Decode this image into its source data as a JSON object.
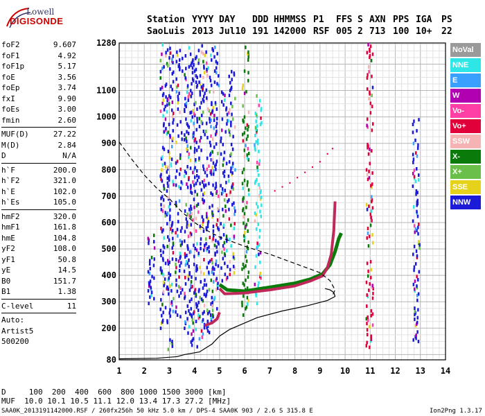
{
  "logo": {
    "line1": "Lowell",
    "line2": "DIGISONDE"
  },
  "header": {
    "row1": [
      "Station",
      "YYYY",
      "DAY",
      "DDD",
      "HHMMSS",
      "P1",
      "FFS",
      "S",
      "AXN",
      "PPS",
      "IGA",
      "PS"
    ],
    "row2": [
      "SaoLuis",
      "2013",
      "Jul10",
      "191",
      "142000",
      "RSF",
      "005",
      "2",
      "713",
      "100",
      "10+",
      "22"
    ]
  },
  "params": [
    [
      {
        "label": "foF2",
        "value": "9.607"
      },
      {
        "label": "foF1",
        "value": "4.92"
      },
      {
        "label": "foF1p",
        "value": "5.17"
      },
      {
        "label": "foE",
        "value": "3.56"
      },
      {
        "label": "foEp",
        "value": "3.74"
      },
      {
        "label": "fxI",
        "value": "9.90"
      },
      {
        "label": "foEs",
        "value": "3.00"
      },
      {
        "label": "fmin",
        "value": "2.60"
      }
    ],
    [
      {
        "label": "MUF(D)",
        "value": "27.22"
      },
      {
        "label": "M(D)",
        "value": "2.84"
      },
      {
        "label": "D",
        "value": "N/A"
      }
    ],
    [
      {
        "label": "h`F",
        "value": "200.0"
      },
      {
        "label": "h`F2",
        "value": "321.0"
      },
      {
        "label": "h`E",
        "value": "102.0"
      },
      {
        "label": "h`Es",
        "value": "105.0"
      }
    ],
    [
      {
        "label": "hmF2",
        "value": "320.0"
      },
      {
        "label": "hmF1",
        "value": "161.8"
      },
      {
        "label": "hmE",
        "value": "104.8"
      },
      {
        "label": "yF2",
        "value": "108.0"
      },
      {
        "label": "yF1",
        "value": "50.8"
      },
      {
        "label": "yE",
        "value": "14.5"
      },
      {
        "label": "B0",
        "value": "151.7"
      },
      {
        "label": "B1",
        "value": "1.38"
      }
    ],
    [
      {
        "label": "C-level",
        "value": "11"
      }
    ]
  ],
  "autoscale": [
    "Auto:",
    "Artist5",
    "500200"
  ],
  "footer": {
    "d_row": "D     100  200  400  600  800 1000 1500 3000 [km]",
    "muf_row": "MUF  10.0 10.1 10.5 11.1 12.0 13.4 17.3 27.2 [MHz]",
    "file_info": "SAA0K_2013191142000.RSF / 260fx256h 50 kHz 5.0 km / DPS-4 SAA0K 903 / 2.6 S 315.8 E",
    "version": "Ion2Png 1.3.17"
  },
  "legend": [
    {
      "label": "NoVal",
      "color": "#9a9a9a"
    },
    {
      "label": "NNE",
      "color": "#2ee6e6"
    },
    {
      "label": "E",
      "color": "#3aa0ff"
    },
    {
      "label": "W",
      "color": "#b000b0"
    },
    {
      "label": "Vo-",
      "color": "#ff3fa5"
    },
    {
      "label": "Vo+",
      "color": "#e0003a"
    },
    {
      "label": "SSW",
      "color": "#f5b3b3"
    },
    {
      "label": "X-",
      "color": "#0a7a0a"
    },
    {
      "label": "X+",
      "color": "#6abf4b"
    },
    {
      "label": "SSE",
      "color": "#e6d21a"
    },
    {
      "label": "NNW",
      "color": "#1a1ad8"
    }
  ],
  "chart_data": {
    "type": "scatter",
    "title": "",
    "xlabel": "",
    "ylabel": "",
    "xlim": [
      1,
      14
    ],
    "ylim": [
      80,
      1280
    ],
    "grid": true,
    "x_ticks": [
      1,
      2,
      3,
      4,
      5,
      6,
      7,
      8,
      9,
      10,
      11,
      12,
      13,
      14
    ],
    "y_ticks": [
      80,
      200,
      300,
      400,
      500,
      600,
      700,
      800,
      900,
      1000,
      1100,
      1280
    ],
    "trace_F_X": {
      "color": "#0a7a0a",
      "points": [
        [
          5.0,
          365
        ],
        [
          5.3,
          345
        ],
        [
          6,
          340
        ],
        [
          7,
          355
        ],
        [
          8,
          370
        ],
        [
          8.6,
          385
        ],
        [
          9.1,
          405
        ],
        [
          9.4,
          440
        ],
        [
          9.6,
          490
        ],
        [
          9.75,
          540
        ],
        [
          9.85,
          560
        ]
      ]
    },
    "trace_F_O": {
      "color": "#c0285a",
      "points": [
        [
          5.0,
          350
        ],
        [
          5.2,
          330
        ],
        [
          6,
          333
        ],
        [
          7,
          345
        ],
        [
          8,
          360
        ],
        [
          8.6,
          378
        ],
        [
          9.1,
          398
        ],
        [
          9.3,
          430
        ],
        [
          9.45,
          480
        ],
        [
          9.55,
          570
        ],
        [
          9.6,
          680
        ]
      ]
    },
    "trace_F1": {
      "color": "#c0285a",
      "points": [
        [
          4.4,
          210
        ],
        [
          4.7,
          220
        ],
        [
          4.9,
          235
        ],
        [
          5.0,
          260
        ]
      ]
    },
    "profile_solid": {
      "color": "#000000",
      "points": [
        [
          1.0,
          84
        ],
        [
          2.5,
          86
        ],
        [
          3.3,
          92
        ],
        [
          3.6,
          100
        ],
        [
          4.2,
          110
        ],
        [
          4.7,
          140
        ],
        [
          5.0,
          170
        ],
        [
          5.4,
          195
        ],
        [
          6.5,
          240
        ],
        [
          7.5,
          265
        ],
        [
          8.5,
          285
        ],
        [
          9.3,
          305
        ],
        [
          9.6,
          320
        ],
        [
          9.55,
          335
        ],
        [
          9.4,
          345
        ],
        [
          9.2,
          350
        ]
      ]
    },
    "profile_dashed": {
      "color": "#000000",
      "points": [
        [
          1.0,
          905
        ],
        [
          1.5,
          840
        ],
        [
          2,
          780
        ],
        [
          2.5,
          730
        ],
        [
          3,
          690
        ],
        [
          3.5,
          640
        ],
        [
          4,
          600
        ],
        [
          4.5,
          570
        ],
        [
          5,
          545
        ],
        [
          6,
          510
        ],
        [
          7,
          480
        ],
        [
          8,
          445
        ],
        [
          9,
          410
        ],
        [
          9.4,
          380
        ],
        [
          9.6,
          345
        ],
        [
          9.5,
          325
        ]
      ]
    },
    "echo_columns": [
      {
        "x": 2.25,
        "y": [
          300,
          560
        ],
        "color": "#1a1ad8"
      },
      {
        "x": 2.75,
        "y": [
          200,
          1280
        ],
        "color": "#1a1ad8"
      },
      {
        "x": 3.0,
        "y": [
          120,
          1280
        ],
        "color": "#1a1ad8"
      },
      {
        "x": 3.35,
        "y": [
          250,
          1280
        ],
        "color": "#1a1ad8"
      },
      {
        "x": 3.7,
        "y": [
          170,
          1280
        ],
        "color": "#1a1ad8"
      },
      {
        "x": 3.95,
        "y": [
          130,
          1280
        ],
        "color": "#1a1ad8"
      },
      {
        "x": 4.25,
        "y": [
          160,
          1280
        ],
        "color": "#1a1ad8"
      },
      {
        "x": 4.55,
        "y": [
          190,
          1280
        ],
        "color": "#1a1ad8"
      },
      {
        "x": 4.8,
        "y": [
          250,
          1280
        ],
        "color": "#1a1ad8"
      },
      {
        "x": 5.15,
        "y": [
          380,
          1100
        ],
        "color": "#1a1ad8"
      },
      {
        "x": 5.45,
        "y": [
          410,
          1180
        ],
        "color": "#1a1ad8"
      },
      {
        "x": 6.0,
        "y": [
          250,
          1280
        ],
        "color": "#0a7a0a"
      },
      {
        "x": 6.5,
        "y": [
          300,
          1100
        ],
        "color": "#2ee6e6"
      },
      {
        "x": 10.95,
        "y": [
          110,
          1280
        ],
        "color": "#e0003a"
      },
      {
        "x": 12.8,
        "y": [
          150,
          1000
        ],
        "color": "#1a1ad8"
      }
    ],
    "sparse_dots": {
      "color": "#e0003a",
      "points": [
        [
          7.2,
          720
        ],
        [
          7.5,
          735
        ],
        [
          7.8,
          750
        ],
        [
          8.1,
          770
        ],
        [
          8.4,
          790
        ],
        [
          8.7,
          810
        ],
        [
          9.0,
          830
        ],
        [
          9.3,
          860
        ],
        [
          9.5,
          880
        ]
      ]
    }
  }
}
